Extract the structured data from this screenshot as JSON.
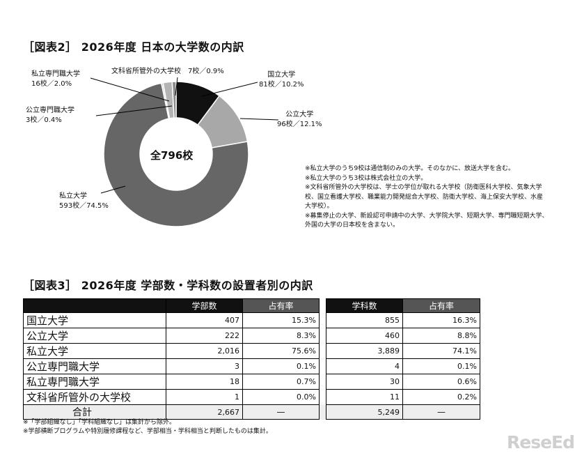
{
  "figure2": {
    "title": "［図表2］ 2026年度 日本の大学数の内訳",
    "center_label": "全796校",
    "labels": [
      {
        "name": "国立大学",
        "value": "81校／10.2%"
      },
      {
        "name": "公立大学",
        "value": "96校／12.1%"
      },
      {
        "name": "私立大学",
        "value": "593校／74.5%"
      },
      {
        "name": "公立専門職大学",
        "value": "3校／0.4%"
      },
      {
        "name": "私立専門職大学",
        "value": "16校／2.0%"
      },
      {
        "name": "文科省所管外の大学校",
        "value": "7校／0.9%"
      }
    ],
    "notes": [
      "※私立大学のうち9校は通信制のみの大学。そのなかに、放送大学を含む。",
      "※私立大学のうち3校は株式会社立の大学。",
      "※文科省所管外の大学校は、学士の学位が取れる大学校（防衛医科大学校、気象大学校、国立看護大学校、職業能力開発総合大学校、防衛大学校、海上保安大学校、水産大学校）。",
      "※募集停止の大学、新設認可申請中の大学、大学院大学、短期大学、専門職短期大学、外国の大学の日本校を含まない。"
    ]
  },
  "chart_data": {
    "type": "pie",
    "title": "［図表2］ 2026年度 日本の大学数の内訳",
    "total": 796,
    "categories": [
      "国立大学",
      "公立大学",
      "私立大学",
      "公立専門職大学",
      "私立専門職大学",
      "文科省所管外の大学校"
    ],
    "values": [
      81,
      96,
      593,
      3,
      16,
      7
    ],
    "percent": [
      10.2,
      12.1,
      74.5,
      0.4,
      2.0,
      0.9
    ],
    "colors": [
      "#111111",
      "#a8a8a8",
      "#666666",
      "#c8c8c8",
      "#b4b4b4",
      "#8c8c8c"
    ]
  },
  "figure3": {
    "title": "［図表3］ 2026年度 学部数・学科数の設置者別の内訳",
    "headers": [
      "学部数",
      "占有率",
      "学科数",
      "占有率"
    ],
    "rows": [
      {
        "name": "国立大学",
        "gakubu": "407",
        "gakubu_share": "15.3%",
        "gakka": "855",
        "gakka_share": "16.3%"
      },
      {
        "name": "公立大学",
        "gakubu": "222",
        "gakubu_share": "8.3%",
        "gakka": "460",
        "gakka_share": "8.8%"
      },
      {
        "name": "私立大学",
        "gakubu": "2,016",
        "gakubu_share": "75.6%",
        "gakka": "3,889",
        "gakka_share": "74.1%"
      },
      {
        "name": "公立専門職大学",
        "gakubu": "3",
        "gakubu_share": "0.1%",
        "gakka": "4",
        "gakka_share": "0.1%"
      },
      {
        "name": "私立専門職大学",
        "gakubu": "18",
        "gakubu_share": "0.7%",
        "gakka": "30",
        "gakka_share": "0.6%"
      },
      {
        "name": "文科省所管外の大学校",
        "gakubu": "1",
        "gakubu_share": "0.0%",
        "gakka": "11",
        "gakka_share": "0.2%"
      }
    ],
    "total": {
      "name": "合計",
      "gakubu": "2,667",
      "gakubu_share": "—",
      "gakka": "5,249",
      "gakka_share": "—"
    },
    "notes": [
      "※「学部組織なし」「学科組織なし」は集計から除外。",
      "※学部横断プログラムや特別履修課程など、学部相当・学科相当と判断したものは集計。"
    ]
  },
  "watermark": "ReseEd"
}
